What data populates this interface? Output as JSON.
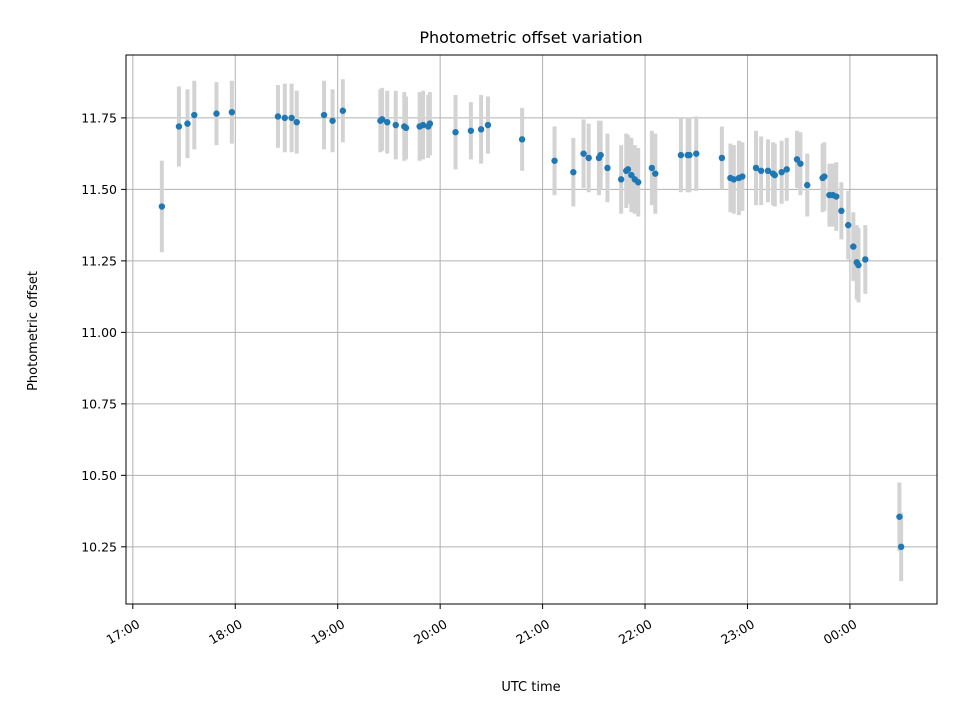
{
  "chart_data": {
    "type": "scatter",
    "title": "Photometric offset variation",
    "xlabel": "UTC time",
    "ylabel": "Photometric offset",
    "x_tick_labels": [
      "17:00",
      "18:00",
      "19:00",
      "20:00",
      "21:00",
      "22:00",
      "23:00",
      "00:00"
    ],
    "x_tick_dates": [
      "2024-01-01 17:00",
      "2024-01-01 18:00",
      "2024-01-01 19:00",
      "2024-01-01 20:00",
      "2024-01-01 21:00",
      "2024-01-01 22:00",
      "2024-01-01 23:00",
      "2024-01-02 00:00"
    ],
    "y_tick_labels": [
      "10.25",
      "10.50",
      "10.75",
      "11.00",
      "11.25",
      "11.50",
      "11.75"
    ],
    "y_ticks": [
      10.25,
      10.5,
      10.75,
      11.0,
      11.25,
      11.5,
      11.75
    ],
    "xlim": [
      "2024-01-01 16:56",
      "2024-01-02 00:51"
    ],
    "ylim": [
      10.05,
      11.97
    ],
    "grid": true,
    "colors": {
      "marker": "#1f77b4",
      "errorbar": "#d3d3d3",
      "grid": "#b0b0b0"
    },
    "series": [
      {
        "x": [
          "2024-01-01 17:17",
          "2024-01-01 17:27",
          "2024-01-01 17:32",
          "2024-01-01 17:36",
          "2024-01-01 17:49",
          "2024-01-01 17:58",
          "2024-01-01 18:25",
          "2024-01-01 18:29",
          "2024-01-01 18:33",
          "2024-01-01 18:36",
          "2024-01-01 18:52",
          "2024-01-01 18:57",
          "2024-01-01 19:03",
          "2024-01-01 19:25",
          "2024-01-01 19:26",
          "2024-01-01 19:29",
          "2024-01-01 19:34",
          "2024-01-01 19:39",
          "2024-01-01 19:40",
          "2024-01-01 19:48",
          "2024-01-01 19:50",
          "2024-01-01 19:53",
          "2024-01-01 19:54",
          "2024-01-01 20:09",
          "2024-01-01 20:18",
          "2024-01-01 20:24",
          "2024-01-01 20:28",
          "2024-01-01 20:48",
          "2024-01-01 21:07",
          "2024-01-01 21:18",
          "2024-01-01 21:24",
          "2024-01-01 21:27",
          "2024-01-01 21:33",
          "2024-01-01 21:34",
          "2024-01-01 21:38",
          "2024-01-01 21:46",
          "2024-01-01 21:49",
          "2024-01-01 21:50",
          "2024-01-01 21:52",
          "2024-01-01 21:54",
          "2024-01-01 21:56",
          "2024-01-01 22:04",
          "2024-01-01 22:06",
          "2024-01-01 22:21",
          "2024-01-01 22:25",
          "2024-01-01 22:26",
          "2024-01-01 22:30",
          "2024-01-01 22:45",
          "2024-01-01 22:50",
          "2024-01-01 22:52",
          "2024-01-01 22:55",
          "2024-01-01 22:57",
          "2024-01-01 23:05",
          "2024-01-01 23:08",
          "2024-01-01 23:12",
          "2024-01-01 23:15",
          "2024-01-01 23:16",
          "2024-01-01 23:20",
          "2024-01-01 23:23",
          "2024-01-01 23:29",
          "2024-01-01 23:31",
          "2024-01-01 23:35",
          "2024-01-01 23:44",
          "2024-01-01 23:45",
          "2024-01-01 23:48",
          "2024-01-01 23:50",
          "2024-01-01 23:52",
          "2024-01-01 23:55",
          "2024-01-01 23:59",
          "2024-01-02 00:02",
          "2024-01-02 00:04",
          "2024-01-02 00:05",
          "2024-01-02 00:09",
          "2024-01-02 00:29",
          "2024-01-02 00:30"
        ],
        "y": [
          11.44,
          11.72,
          11.73,
          11.76,
          11.765,
          11.77,
          11.755,
          11.75,
          11.75,
          11.735,
          11.76,
          11.74,
          11.775,
          11.74,
          11.745,
          11.735,
          11.725,
          11.72,
          11.715,
          11.72,
          11.725,
          11.72,
          11.73,
          11.7,
          11.705,
          11.71,
          11.725,
          11.675,
          11.6,
          11.56,
          11.625,
          11.61,
          11.61,
          11.62,
          11.575,
          11.535,
          11.565,
          11.57,
          11.55,
          11.535,
          11.525,
          11.575,
          11.555,
          11.62,
          11.62,
          11.62,
          11.625,
          11.61,
          11.54,
          11.535,
          11.54,
          11.545,
          11.575,
          11.565,
          11.565,
          11.555,
          11.55,
          11.56,
          11.57,
          11.605,
          11.59,
          11.515,
          11.54,
          11.545,
          11.48,
          11.48,
          11.475,
          11.425,
          11.375,
          11.3,
          11.245,
          11.235,
          11.255,
          10.355,
          10.25
        ],
        "err": [
          0.16,
          0.14,
          0.12,
          0.12,
          0.11,
          0.11,
          0.11,
          0.12,
          0.12,
          0.11,
          0.12,
          0.11,
          0.11,
          0.11,
          0.11,
          0.11,
          0.12,
          0.12,
          0.11,
          0.12,
          0.12,
          0.11,
          0.11,
          0.13,
          0.1,
          0.12,
          0.1,
          0.11,
          0.12,
          0.12,
          0.12,
          0.12,
          0.13,
          0.12,
          0.12,
          0.12,
          0.13,
          0.12,
          0.13,
          0.12,
          0.12,
          0.13,
          0.14,
          0.13,
          0.13,
          0.13,
          0.13,
          0.11,
          0.12,
          0.12,
          0.13,
          0.12,
          0.13,
          0.12,
          0.11,
          0.11,
          0.11,
          0.11,
          0.11,
          0.1,
          0.11,
          0.11,
          0.12,
          0.12,
          0.11,
          0.11,
          0.12,
          0.1,
          0.12,
          0.12,
          0.13,
          0.13,
          0.12,
          0.12,
          0.12
        ]
      }
    ]
  }
}
